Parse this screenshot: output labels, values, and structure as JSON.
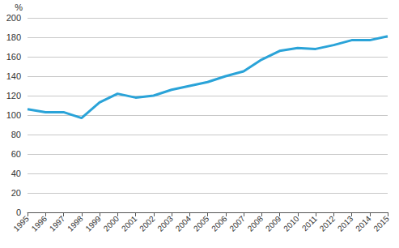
{
  "chart_data": {
    "type": "line",
    "ylabel": "%",
    "categories": [
      "1995",
      "1996",
      "1997",
      "1998",
      "1999",
      "2000",
      "2001",
      "2002",
      "2003",
      "2004",
      "2005",
      "2006",
      "2007",
      "2008",
      "2009",
      "2010",
      "2011",
      "2012",
      "2013",
      "2014",
      "2015"
    ],
    "values": [
      106,
      103,
      103,
      97,
      113,
      122,
      118,
      120,
      126,
      130,
      134,
      140,
      145,
      157,
      166,
      169,
      168,
      172,
      177,
      177,
      181
    ],
    "color": "#2aa3d8",
    "ylim": [
      0,
      200
    ],
    "yticks": [
      0,
      20,
      40,
      60,
      80,
      100,
      120,
      140,
      160,
      180,
      200
    ],
    "grid": true
  }
}
